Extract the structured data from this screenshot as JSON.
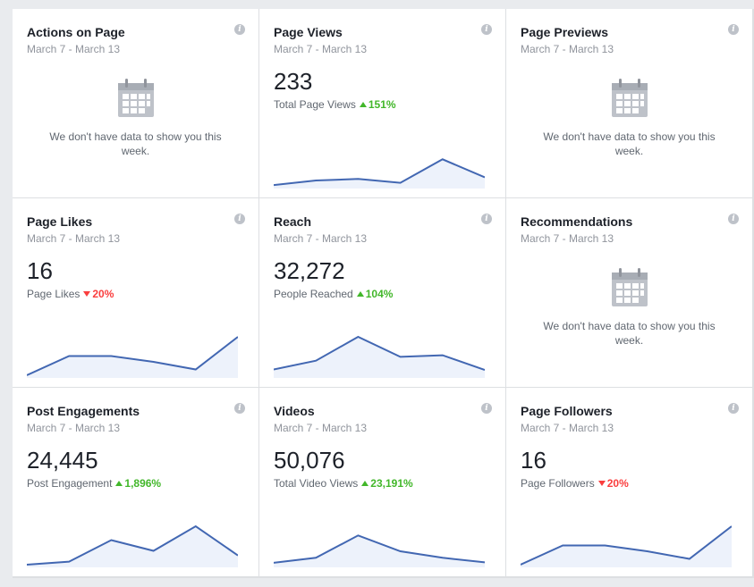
{
  "cards": [
    {
      "title": "Actions on Page",
      "date": "March 7 - March 13",
      "empty": true,
      "empty_message": "We don't have data to show you this week.",
      "icon": "calendar-icon"
    },
    {
      "title": "Page Views",
      "date": "March 7 - March 13",
      "value": "233",
      "metric": "Total Page Views",
      "change": "151%",
      "direction": "up",
      "trend": [
        2,
        14,
        18,
        8,
        69,
        22
      ]
    },
    {
      "title": "Page Previews",
      "date": "March 7 - March 13",
      "empty": true,
      "empty_message": "We don't have data to show you this week.",
      "icon": "calendar-icon"
    },
    {
      "title": "Page Likes",
      "date": "March 7 - March 13",
      "value": "16",
      "metric": "Page Likes",
      "change": "20%",
      "direction": "down",
      "trend": [
        0,
        50,
        50,
        35,
        15,
        100
      ]
    },
    {
      "title": "Reach",
      "date": "March 7 - March 13",
      "value": "32,272",
      "metric": "People Reached",
      "change": "104%",
      "direction": "up",
      "trend": [
        15,
        38,
        100,
        48,
        52,
        14
      ]
    },
    {
      "title": "Recommendations",
      "date": "March 7 - March 13",
      "empty": true,
      "empty_message": "We don't have data to show you this week.",
      "icon": "calendar-icon"
    },
    {
      "title": "Post Engagements",
      "date": "March 7 - March 13",
      "value": "24,445",
      "metric": "Post Engagement",
      "change": "1,896%",
      "direction": "up",
      "trend": [
        0,
        8,
        64,
        36,
        100,
        24
      ]
    },
    {
      "title": "Videos",
      "date": "March 7 - March 13",
      "value": "50,076",
      "metric": "Total Video Views",
      "change": "23,191%",
      "direction": "up",
      "trend": [
        5,
        18,
        76,
        35,
        18,
        6
      ]
    },
    {
      "title": "Page Followers",
      "date": "March 7 - March 13",
      "value": "16",
      "metric": "Page Followers",
      "change": "20%",
      "direction": "down",
      "trend": [
        0,
        50,
        50,
        35,
        15,
        100
      ]
    }
  ],
  "colors": {
    "line": "#4267b2",
    "fill": "#edf2fb",
    "up": "#42b72a",
    "down": "#fa3e3e"
  }
}
